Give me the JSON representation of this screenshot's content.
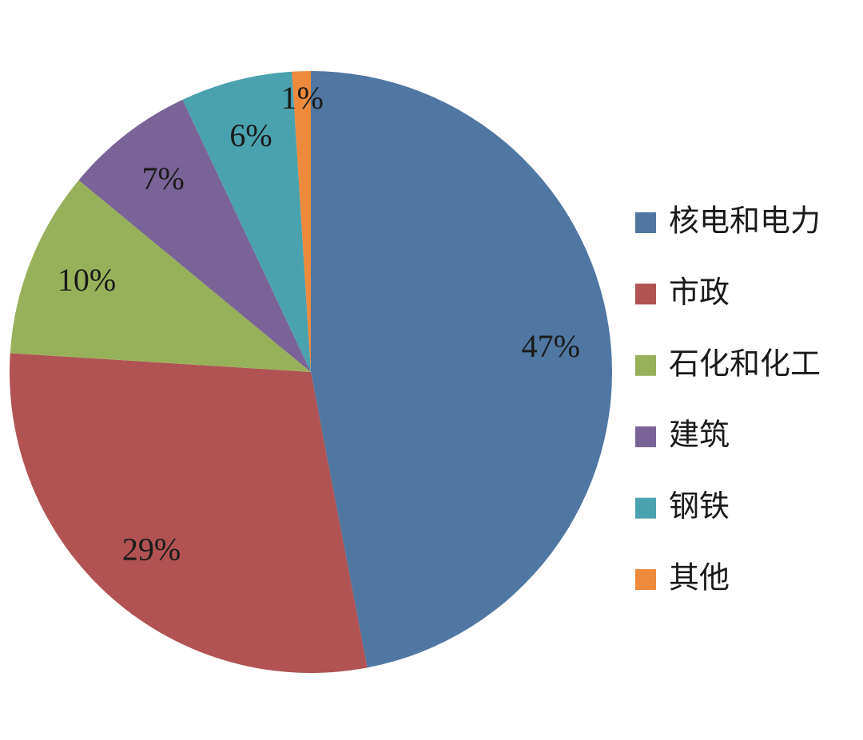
{
  "chart_data": {
    "type": "pie",
    "categories": [
      "核电和电力",
      "市政",
      "石化和化工",
      "建筑",
      "钢铁",
      "其他"
    ],
    "values": [
      47,
      29,
      10,
      7,
      6,
      1
    ],
    "value_labels": [
      "47%",
      "29%",
      "10%",
      "7%",
      "6%",
      "1%"
    ],
    "colors": [
      "#4f77a2",
      "#b05352",
      "#97b15a",
      "#7a6396",
      "#4aa2af",
      "#ee8a3c"
    ],
    "legend": "right"
  }
}
